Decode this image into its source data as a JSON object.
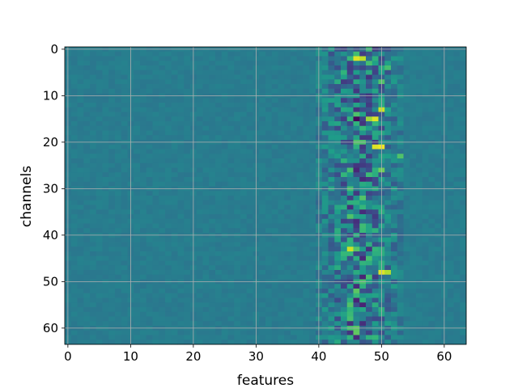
{
  "chart_data": {
    "type": "heatmap",
    "title": "",
    "xlabel": "features",
    "ylabel": "channels",
    "xlim": [
      -0.5,
      63.5
    ],
    "ylim": [
      63.5,
      -0.5
    ],
    "xticks": [
      0,
      10,
      20,
      30,
      40,
      50,
      60
    ],
    "yticks": [
      0,
      10,
      20,
      30,
      40,
      50,
      60
    ],
    "xtick_labels": [
      "0",
      "10",
      "20",
      "30",
      "40",
      "50",
      "60"
    ],
    "ytick_labels": [
      "0",
      "10",
      "20",
      "30",
      "40",
      "50",
      "60"
    ],
    "grid": true,
    "colormap": "viridis",
    "shape": [
      64,
      64
    ],
    "background_value": 0.42,
    "active_band": {
      "x_start": 40,
      "x_end": 53,
      "y_start": 0,
      "y_end": 63
    },
    "notable_cells": [
      {
        "channel": 2,
        "feature": 46,
        "value": 0.95
      },
      {
        "channel": 2,
        "feature": 47,
        "value": 0.9
      },
      {
        "channel": 4,
        "feature": 51,
        "value": 0.7
      },
      {
        "channel": 7,
        "feature": 50,
        "value": 0.72
      },
      {
        "channel": 13,
        "feature": 50,
        "value": 0.92
      },
      {
        "channel": 15,
        "feature": 46,
        "value": 0.02
      },
      {
        "channel": 15,
        "feature": 48,
        "value": 0.85
      },
      {
        "channel": 15,
        "feature": 49,
        "value": 0.95
      },
      {
        "channel": 21,
        "feature": 49,
        "value": 0.95
      },
      {
        "channel": 21,
        "feature": 50,
        "value": 0.98
      },
      {
        "channel": 23,
        "feature": 53,
        "value": 0.72
      },
      {
        "channel": 26,
        "feature": 50,
        "value": 0.78
      },
      {
        "channel": 27,
        "feature": 48,
        "value": 0.68
      },
      {
        "channel": 36,
        "feature": 45,
        "value": 0.72
      },
      {
        "channel": 43,
        "feature": 45,
        "value": 0.92
      },
      {
        "channel": 43,
        "feature": 48,
        "value": 0.15
      },
      {
        "channel": 48,
        "feature": 50,
        "value": 0.95
      },
      {
        "channel": 48,
        "feature": 51,
        "value": 0.88
      },
      {
        "channel": 55,
        "feature": 45,
        "value": 0.72
      },
      {
        "channel": 61,
        "feature": 46,
        "value": 0.75
      }
    ]
  }
}
